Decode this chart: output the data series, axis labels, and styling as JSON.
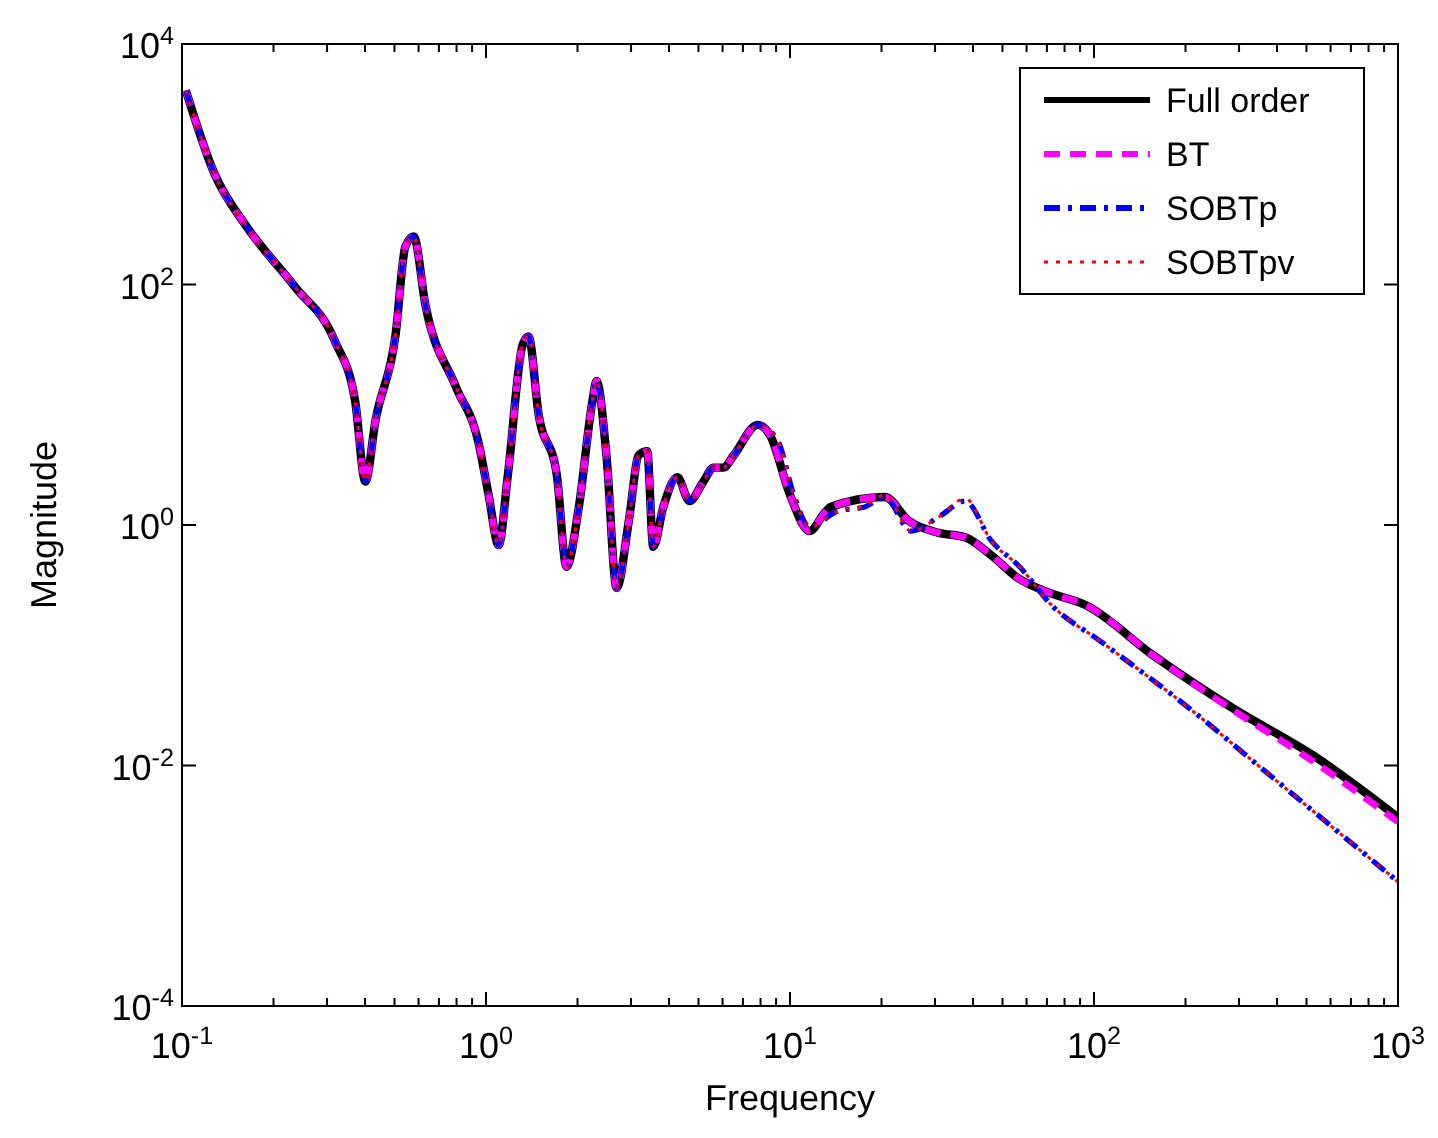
{
  "chart_data": {
    "type": "line",
    "xlabel": "Frequency",
    "ylabel": "Magnitude",
    "log": "xy",
    "grid": false,
    "legend": "top right",
    "marker": "none",
    "xlim": [
      0.1,
      1000
    ],
    "ylim": [
      0.0001,
      10000
    ],
    "xticks": [
      {
        "value": 0.1,
        "label": "10$^{-1}$"
      },
      {
        "value": 0.2,
        "label": null
      },
      {
        "value": 0.3,
        "label": null
      },
      {
        "value": 0.4,
        "label": null
      },
      {
        "value": 0.5,
        "label": null
      },
      {
        "value": 0.6,
        "label": null
      },
      {
        "value": 0.7,
        "label": null
      },
      {
        "value": 0.8,
        "label": null
      },
      {
        "value": 0.9,
        "label": null
      },
      {
        "value": 1,
        "label": "10$^{0}$"
      },
      {
        "value": 2,
        "label": null
      },
      {
        "value": 3,
        "label": null
      },
      {
        "value": 4,
        "label": null
      },
      {
        "value": 5,
        "label": null
      },
      {
        "value": 6,
        "label": null
      },
      {
        "value": 7,
        "label": null
      },
      {
        "value": 8,
        "label": null
      },
      {
        "value": 9,
        "label": null
      },
      {
        "value": 10,
        "label": "10$^{1}$"
      },
      {
        "value": 20,
        "label": null
      },
      {
        "value": 30,
        "label": null
      },
      {
        "value": 40,
        "label": null
      },
      {
        "value": 50,
        "label": null
      },
      {
        "value": 60,
        "label": null
      },
      {
        "value": 70,
        "label": null
      },
      {
        "value": 80,
        "label": null
      },
      {
        "value": 90,
        "label": null
      },
      {
        "value": 100,
        "label": "10$^{2}$"
      },
      {
        "value": 200,
        "label": null
      },
      {
        "value": 300,
        "label": null
      },
      {
        "value": 400,
        "label": null
      },
      {
        "value": 500,
        "label": null
      },
      {
        "value": 600,
        "label": null
      },
      {
        "value": 700,
        "label": null
      },
      {
        "value": 800,
        "label": null
      },
      {
        "value": 900,
        "label": null
      },
      {
        "value": 1000,
        "label": "10$^{3}$"
      }
    ],
    "yticks": [
      {
        "value": 0.0001,
        "label": "10$^{-4}$"
      },
      {
        "value": 0.01,
        "label": "10$^{-2}$"
      },
      {
        "value": 1,
        "label": "10$^{0}$"
      },
      {
        "value": 100,
        "label": "10$^{2}$"
      },
      {
        "value": 10000,
        "label": "10$^{4}$"
      }
    ],
    "series": [
      {
        "name": "Full order",
        "color": "#000000",
        "line_style": "solid",
        "x": [
          0.103,
          0.128,
          0.163,
          0.235,
          0.318,
          0.371,
          0.401,
          0.433,
          0.504,
          0.543,
          0.578,
          0.633,
          0.796,
          0.942,
          1.02,
          1.1,
          1.18,
          1.32,
          1.38,
          1.49,
          1.71,
          1.84,
          2.02,
          2.24,
          2.31,
          2.49,
          2.69,
          2.95,
          3.18,
          3.39,
          3.55,
          3.83,
          4.26,
          4.67,
          5.19,
          5.6,
          6.04,
          6.53,
          7.83,
          8.59,
          10,
          11.6,
          13,
          13.6,
          20.5,
          24.6,
          30.9,
          37.7,
          45.9,
          56.9,
          69.3,
          94.2,
          156,
          286,
          527,
          1000
        ],
        "values": [
          4100,
          830,
          304,
          96,
          34,
          10.8,
          2.3,
          7.4,
          38,
          207,
          251,
          66,
          14.1,
          5,
          1.78,
          0.68,
          2.6,
          31.6,
          36.9,
          8.3,
          2.6,
          0.45,
          1.41,
          10.8,
          15.8,
          3.8,
          0.3,
          1.08,
          3.8,
          4.1,
          0.66,
          1.41,
          2.5,
          1.58,
          2.3,
          3,
          3,
          3.8,
          6.8,
          5.6,
          1.78,
          0.89,
          1.26,
          1.41,
          1.71,
          1.08,
          0.86,
          0.79,
          0.56,
          0.355,
          0.28,
          0.215,
          0.083,
          0.03,
          0.0121,
          0.0037
        ]
      },
      {
        "name": "BT",
        "color": "#ff00ff",
        "line_style": "dashed",
        "x": [
          0.103,
          0.128,
          0.163,
          0.235,
          0.318,
          0.371,
          0.401,
          0.433,
          0.504,
          0.543,
          0.578,
          0.633,
          0.796,
          0.942,
          1.02,
          1.1,
          1.18,
          1.32,
          1.38,
          1.49,
          1.71,
          1.84,
          2.02,
          2.24,
          2.31,
          2.49,
          2.69,
          2.95,
          3.18,
          3.39,
          3.55,
          3.83,
          4.26,
          4.67,
          5.19,
          5.6,
          6.04,
          6.53,
          7.83,
          8.59,
          10,
          11.6,
          13,
          13.6,
          20.5,
          24.6,
          30.9,
          37.7,
          45.9,
          56.9,
          69.3,
          94.2,
          156,
          286,
          527,
          1000
        ],
        "values": [
          4100,
          830,
          304,
          96,
          34,
          10.8,
          2.3,
          7.4,
          38,
          207,
          251,
          66,
          14.1,
          5,
          1.78,
          0.68,
          2.6,
          31.6,
          36.9,
          8.3,
          2.6,
          0.45,
          1.41,
          10.8,
          15.8,
          3.8,
          0.3,
          1.08,
          3.8,
          4.1,
          0.66,
          1.41,
          2.5,
          1.58,
          2.3,
          3,
          3,
          3.8,
          6.8,
          5.6,
          1.78,
          0.89,
          1.26,
          1.41,
          1.71,
          1.08,
          0.86,
          0.79,
          0.56,
          0.355,
          0.28,
          0.215,
          0.083,
          0.029,
          0.0108,
          0.0034
        ]
      },
      {
        "name": "SOBTp",
        "color": "#0000ff",
        "line_style": "dashdot",
        "x": [
          0.103,
          0.128,
          0.163,
          0.235,
          0.318,
          0.371,
          0.401,
          0.433,
          0.504,
          0.543,
          0.578,
          0.633,
          0.796,
          0.942,
          1.02,
          1.1,
          1.18,
          1.32,
          1.38,
          1.49,
          1.71,
          1.84,
          2.02,
          2.24,
          2.31,
          2.49,
          2.69,
          2.95,
          3.18,
          3.39,
          3.55,
          3.83,
          4.26,
          4.67,
          5.19,
          5.6,
          6.04,
          6.53,
          7.83,
          9.12,
          10.3,
          11.6,
          14.4,
          17.6,
          20.5,
          25,
          30.9,
          37.7,
          45.9,
          56.9,
          72.6,
          105,
          193,
          388,
          1000
        ],
        "values": [
          4100,
          830,
          304,
          96,
          34,
          10.8,
          2.3,
          7.4,
          38,
          207,
          251,
          66,
          14.1,
          5,
          1.78,
          0.68,
          2.6,
          31.6,
          36.9,
          8.3,
          2.6,
          0.45,
          1.41,
          10.8,
          15.8,
          3.8,
          0.3,
          1.08,
          3.8,
          4.1,
          0.66,
          1.41,
          2.5,
          1.58,
          2.3,
          3,
          3,
          3.8,
          6.8,
          5,
          1.78,
          0.96,
          1.31,
          1.41,
          1.71,
          0.89,
          1.17,
          1.58,
          0.74,
          0.45,
          0.215,
          0.108,
          0.034,
          0.0079,
          0.00108
        ]
      },
      {
        "name": "SOBTpv",
        "color": "#ff0000",
        "line_style": "dotted",
        "x": [
          0.103,
          0.128,
          0.163,
          0.235,
          0.318,
          0.371,
          0.401,
          0.433,
          0.504,
          0.543,
          0.578,
          0.633,
          0.796,
          0.942,
          1.02,
          1.1,
          1.18,
          1.32,
          1.38,
          1.49,
          1.71,
          1.84,
          2.02,
          2.24,
          2.31,
          2.49,
          2.69,
          2.95,
          3.18,
          3.39,
          3.55,
          3.83,
          4.26,
          4.67,
          5.19,
          5.6,
          6.04,
          6.53,
          7.83,
          9.12,
          10.3,
          11.6,
          14.4,
          17.6,
          20.5,
          25,
          30.9,
          37.7,
          45.9,
          56.9,
          72.6,
          105,
          193,
          388,
          1000
        ],
        "values": [
          4100,
          830,
          304,
          96,
          34,
          10.8,
          2.3,
          7.4,
          38,
          207,
          251,
          66,
          14.1,
          5,
          1.78,
          0.68,
          2.6,
          31.6,
          36.9,
          8.3,
          2.6,
          0.45,
          1.41,
          10.8,
          15.8,
          3.8,
          0.3,
          1.08,
          3.8,
          4.1,
          0.66,
          1.41,
          2.5,
          1.58,
          2.3,
          3,
          3,
          3.8,
          6.8,
          5,
          1.78,
          0.96,
          1.31,
          1.45,
          1.78,
          0.89,
          1.17,
          1.66,
          0.74,
          0.45,
          0.215,
          0.108,
          0.034,
          0.0079,
          0.00108
        ]
      }
    ]
  }
}
